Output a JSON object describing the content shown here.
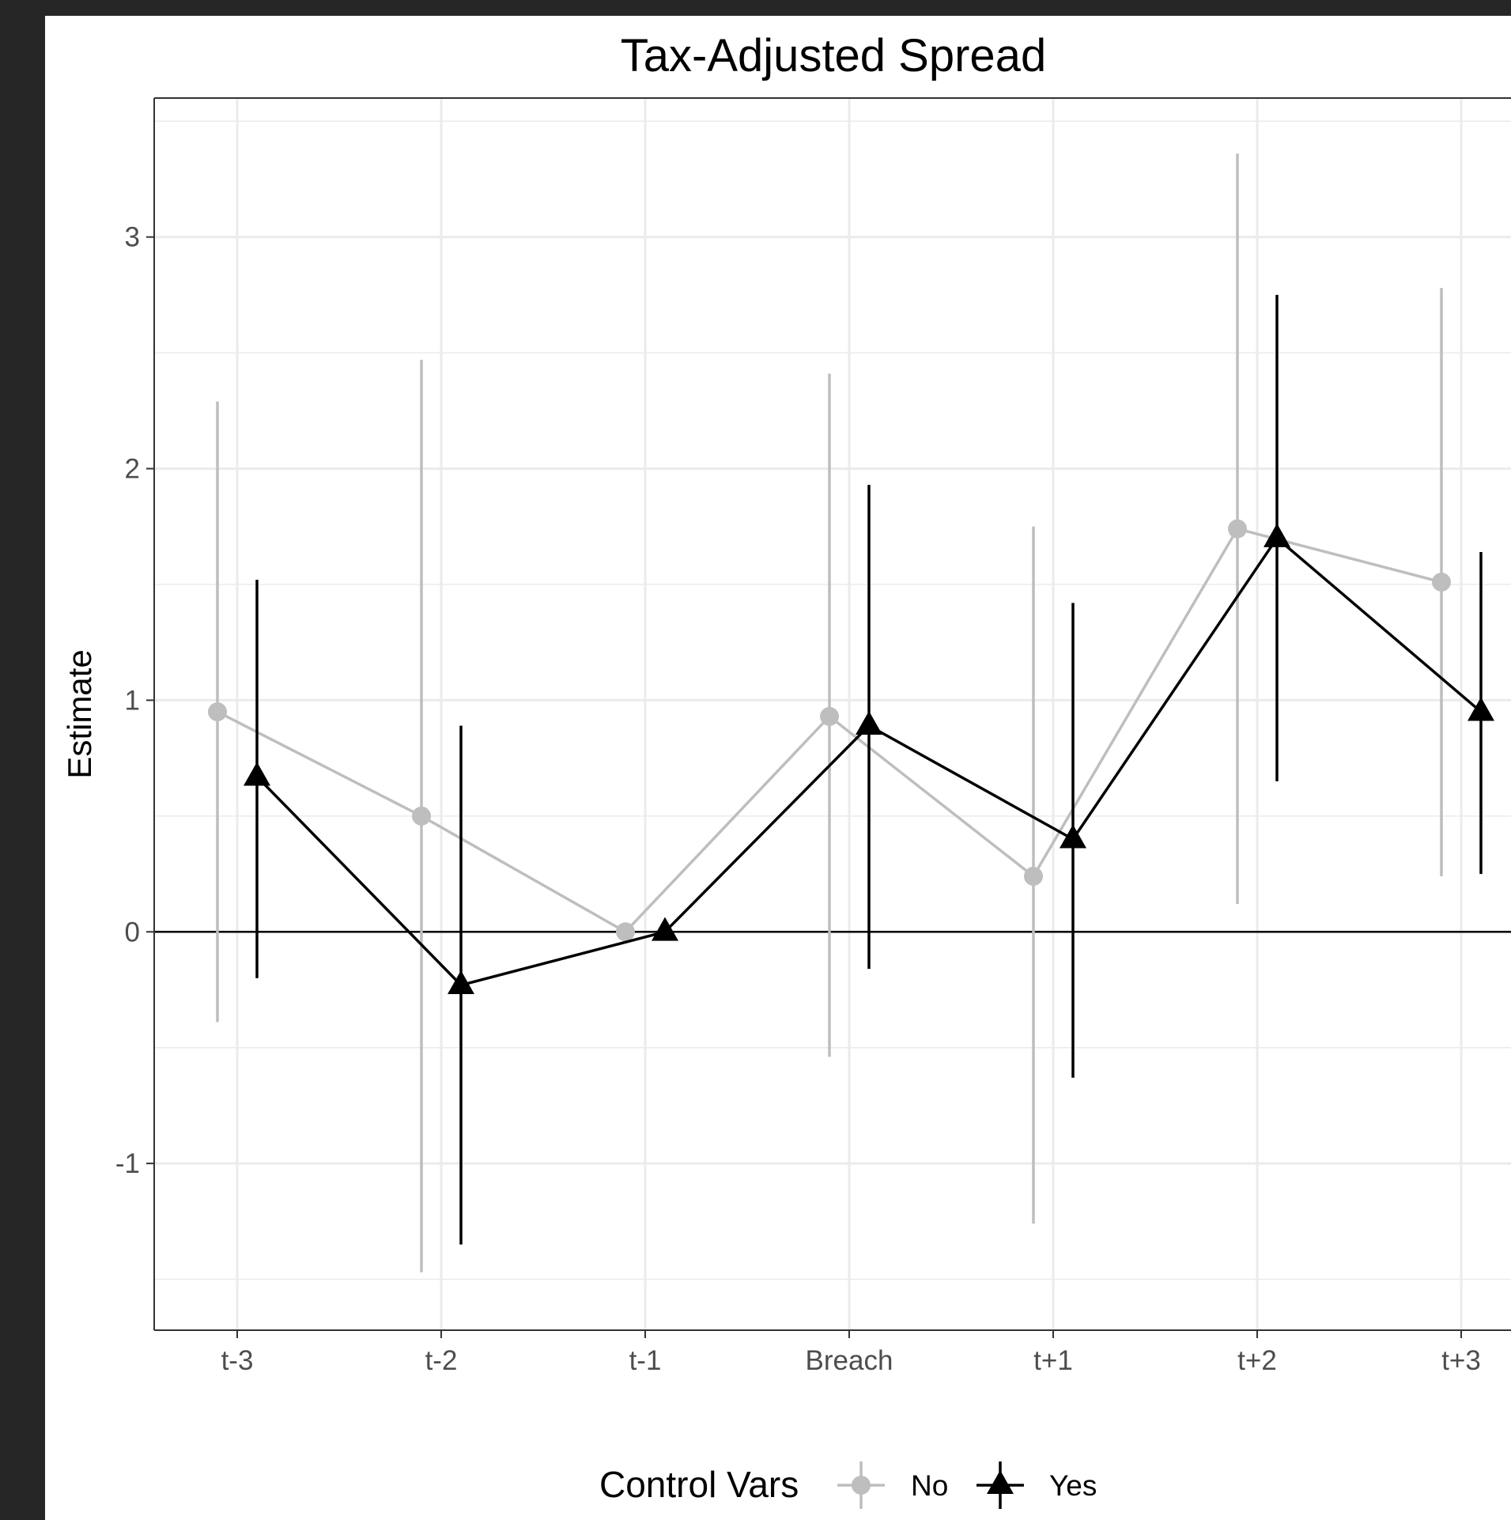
{
  "chart_data": {
    "type": "line",
    "title": "Tax-Adjusted Spread",
    "xlabel": "",
    "ylabel": "Estimate",
    "categories": [
      "t-3",
      "t-2",
      "t-1",
      "Breach",
      "t+1",
      "t+2",
      "t+3"
    ],
    "ylim": [
      -1.72,
      3.6
    ],
    "yticks": [
      -1,
      0,
      1,
      2,
      3
    ],
    "ytick_labels": [
      "-1",
      "0",
      "1",
      "2",
      "3"
    ],
    "grid": true,
    "reference_line": 0,
    "legend": {
      "title": "Control Vars",
      "placement": "bottom"
    },
    "series": [
      {
        "name": "No",
        "marker": "circle",
        "color": "#bebebe",
        "values": [
          0.95,
          0.5,
          0.0,
          0.93,
          0.24,
          1.74,
          1.51
        ],
        "lower": [
          -0.39,
          -1.47,
          0.0,
          -0.54,
          -1.26,
          0.12,
          0.24
        ],
        "upper": [
          2.29,
          2.47,
          0.0,
          2.41,
          1.75,
          3.36,
          2.78
        ]
      },
      {
        "name": "Yes",
        "marker": "triangle",
        "color": "#000000",
        "values": [
          0.67,
          -0.23,
          0.0,
          0.89,
          0.4,
          1.7,
          0.95
        ],
        "lower": [
          -0.2,
          -1.35,
          0.0,
          -0.16,
          -0.63,
          0.65,
          0.25
        ],
        "upper": [
          1.52,
          0.89,
          0.0,
          1.93,
          1.42,
          2.75,
          1.64
        ]
      }
    ]
  }
}
